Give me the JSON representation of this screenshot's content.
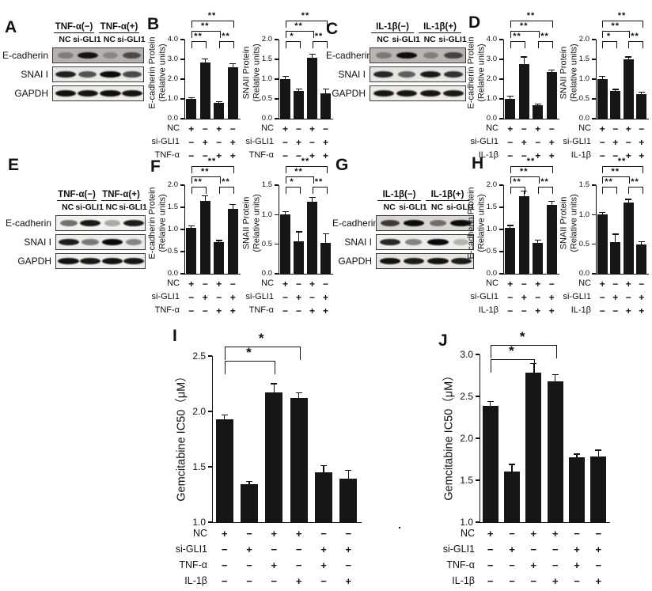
{
  "panel_labels": [
    "A",
    "B",
    "C",
    "D",
    "E",
    "F",
    "G",
    "H",
    "I",
    "J"
  ],
  "stray_mark": ".",
  "blots": [
    {
      "panel": "A",
      "groups": [
        "TNF-α(−)",
        "TNF-α(+)"
      ],
      "lanes": [
        "NC",
        "si-GLI1",
        "NC",
        "si-GLI1"
      ],
      "rows": [
        {
          "label": "E-cadherin",
          "bg": "#b6b2ad",
          "bands": [
            0.3,
            0.92,
            0.25,
            0.6
          ]
        },
        {
          "label": "SNAI I",
          "bg": "#eae8e4",
          "bands": [
            0.88,
            0.65,
            0.97,
            0.7
          ]
        },
        {
          "label": "GAPDH",
          "bg": "#efece8",
          "bands": [
            0.95,
            0.93,
            0.95,
            0.93
          ]
        }
      ]
    },
    {
      "panel": "C",
      "groups": [
        "IL-1β(−)",
        "IL-1β(+)"
      ],
      "lanes": [
        "NC",
        "si-GLI1",
        "NC",
        "si-GLI1"
      ],
      "rows": [
        {
          "label": "E-cadherin",
          "bg": "#b9b5b0",
          "bands": [
            0.35,
            0.95,
            0.3,
            0.65
          ]
        },
        {
          "label": "SNAI I",
          "bg": "#e7e5e1",
          "bands": [
            0.85,
            0.6,
            0.9,
            0.8
          ]
        },
        {
          "label": "GAPDH",
          "bg": "#eeebe7",
          "bands": [
            0.92,
            0.92,
            0.93,
            0.9
          ]
        }
      ]
    },
    {
      "panel": "E",
      "groups": [
        "TNF-α(−)",
        "TNF-α(+)"
      ],
      "lanes": [
        "NC",
        "si-GLI1",
        "NC",
        "si-GLI1"
      ],
      "rows": [
        {
          "label": "E-cadherin",
          "bg": "#f3f1ee",
          "bands": [
            0.55,
            0.92,
            0.3,
            0.9
          ]
        },
        {
          "label": "SNAI I",
          "bg": "#eeece9",
          "bands": [
            0.9,
            0.5,
            0.98,
            0.45
          ]
        },
        {
          "label": "GAPDH",
          "bg": "#f1efec",
          "bands": [
            0.95,
            0.92,
            0.95,
            0.93
          ]
        }
      ]
    },
    {
      "panel": "G",
      "groups": [
        "IL-1β(−)",
        "IL-1β(+)"
      ],
      "lanes": [
        "NC",
        "si-GLI1",
        "NC",
        "si-GLI1"
      ],
      "rows": [
        {
          "label": "E-cadherin",
          "bg": "#d9d6d1",
          "bands": [
            0.75,
            0.97,
            0.5,
            0.97
          ]
        },
        {
          "label": "SNAI I",
          "bg": "#efedea",
          "bands": [
            0.85,
            0.45,
            0.98,
            0.25
          ]
        },
        {
          "label": "GAPDH",
          "bg": "#e9e6e2",
          "bands": [
            0.95,
            0.9,
            0.95,
            0.9
          ]
        }
      ]
    }
  ],
  "chart_data": [
    {
      "panel": "B",
      "type": "bar",
      "ylabel_lines": [
        "E-cadherin Protein",
        "(Relative units)"
      ],
      "ylim": [
        0,
        4
      ],
      "yticks": [
        0,
        1,
        2,
        3,
        4
      ],
      "values": [
        1.0,
        2.85,
        0.8,
        2.6
      ],
      "errors": [
        0.06,
        0.18,
        0.05,
        0.18
      ],
      "sig": [
        {
          "a": 0,
          "b": 1,
          "label": "**",
          "level": 1
        },
        {
          "a": 2,
          "b": 3,
          "label": "**",
          "level": 1
        },
        {
          "a": 0,
          "b": 2,
          "label": "**",
          "level": 2
        },
        {
          "a": 0,
          "b": 3,
          "label": "**",
          "level": 3
        }
      ],
      "xrows": [
        {
          "label": "NC",
          "signs": [
            "+",
            "−",
            "+",
            "−"
          ]
        },
        {
          "label": "si-GLI1",
          "signs": [
            "−",
            "+",
            "−",
            "+"
          ]
        },
        {
          "label": "TNF-α",
          "signs": [
            "−",
            "−",
            "+",
            "+"
          ]
        }
      ]
    },
    {
      "panel": "B",
      "type": "bar",
      "ylabel_lines": [
        "SNAII Protein",
        "(Relative units)"
      ],
      "ylim": [
        0,
        2
      ],
      "yticks": [
        0,
        0.5,
        1,
        1.5,
        2
      ],
      "values": [
        1.0,
        0.7,
        1.55,
        0.65
      ],
      "errors": [
        0.07,
        0.05,
        0.08,
        0.1
      ],
      "sig": [
        {
          "a": 0,
          "b": 1,
          "label": "*",
          "level": 1
        },
        {
          "a": 2,
          "b": 3,
          "label": "**",
          "level": 1
        },
        {
          "a": 0,
          "b": 2,
          "label": "**",
          "level": 2
        },
        {
          "a": 0,
          "b": 3,
          "label": "**",
          "level": 3
        }
      ],
      "xrows": [
        {
          "label": "NC",
          "signs": [
            "+",
            "−",
            "+",
            "−"
          ]
        },
        {
          "label": "si-GLI1",
          "signs": [
            "−",
            "+",
            "−",
            "+"
          ]
        },
        {
          "label": "TNF-α",
          "signs": [
            "−",
            "−",
            "+",
            "+"
          ]
        }
      ]
    },
    {
      "panel": "D",
      "type": "bar",
      "ylabel_lines": [
        "E-cadherin Protein",
        "(Relative units)"
      ],
      "ylim": [
        0,
        4
      ],
      "yticks": [
        0,
        1,
        2,
        3,
        4
      ],
      "values": [
        1.02,
        2.78,
        0.7,
        2.37
      ],
      "errors": [
        0.12,
        0.34,
        0.03,
        0.08
      ],
      "sig": [
        {
          "a": 0,
          "b": 1,
          "label": "**",
          "level": 1
        },
        {
          "a": 2,
          "b": 3,
          "label": "**",
          "level": 1
        },
        {
          "a": 0,
          "b": 2,
          "label": "**",
          "level": 2
        },
        {
          "a": 0,
          "b": 3,
          "label": "**",
          "level": 3
        }
      ],
      "xrows": [
        {
          "label": "NC",
          "signs": [
            "+",
            "−",
            "+",
            "−"
          ]
        },
        {
          "label": "si-GLI1",
          "signs": [
            "−",
            "+",
            "−",
            "+"
          ]
        },
        {
          "label": "IL-1β",
          "signs": [
            "−",
            "−",
            "+",
            "+"
          ]
        }
      ]
    },
    {
      "panel": "D",
      "type": "bar",
      "ylabel_lines": [
        "SNAII Protein",
        "(Relative units)"
      ],
      "ylim": [
        0,
        2
      ],
      "yticks": [
        0,
        0.5,
        1,
        1.5,
        2
      ],
      "values": [
        1.0,
        0.7,
        1.5,
        0.62
      ],
      "errors": [
        0.07,
        0.04,
        0.06,
        0.05
      ],
      "sig": [
        {
          "a": 0,
          "b": 1,
          "label": "*",
          "level": 1
        },
        {
          "a": 2,
          "b": 3,
          "label": "**",
          "level": 1
        },
        {
          "a": 0,
          "b": 2,
          "label": "**",
          "level": 2
        },
        {
          "a": 0,
          "b": 3,
          "label": "**",
          "level": 3
        }
      ],
      "xrows": [
        {
          "label": "NC",
          "signs": [
            "+",
            "−",
            "+",
            "−"
          ]
        },
        {
          "label": "si-GLI1",
          "signs": [
            "−",
            "+",
            "−",
            "+"
          ]
        },
        {
          "label": "IL-1β",
          "signs": [
            "−",
            "−",
            "+",
            "+"
          ]
        }
      ]
    },
    {
      "panel": "F",
      "type": "bar",
      "ylabel_lines": [
        "E-cadherin Protein",
        "(Relative units)"
      ],
      "ylim": [
        0,
        2
      ],
      "yticks": [
        0,
        0.5,
        1,
        1.5,
        2
      ],
      "values": [
        1.04,
        1.65,
        0.72,
        1.47
      ],
      "errors": [
        0.04,
        0.11,
        0.03,
        0.09
      ],
      "sig": [
        {
          "a": 0,
          "b": 1,
          "label": "**",
          "level": 1
        },
        {
          "a": 2,
          "b": 3,
          "label": "**",
          "level": 1
        },
        {
          "a": 0,
          "b": 2,
          "label": "**",
          "level": 2
        },
        {
          "a": 0,
          "b": 3,
          "label": "**",
          "level": 3
        }
      ],
      "xrows": [
        {
          "label": "NC",
          "signs": [
            "+",
            "−",
            "+",
            "−"
          ]
        },
        {
          "label": "si-GLI1",
          "signs": [
            "−",
            "+",
            "−",
            "+"
          ]
        },
        {
          "label": "TNF-α",
          "signs": [
            "−",
            "−",
            "+",
            "+"
          ]
        }
      ]
    },
    {
      "panel": "F",
      "type": "bar",
      "ylabel_lines": [
        "SNAII Protein",
        "(Relative units)"
      ],
      "ylim": [
        0,
        1.5
      ],
      "yticks": [
        0,
        0.5,
        1,
        1.5
      ],
      "values": [
        1.0,
        0.55,
        1.22,
        0.52
      ],
      "errors": [
        0.05,
        0.16,
        0.07,
        0.16
      ],
      "sig": [
        {
          "a": 0,
          "b": 1,
          "label": "*",
          "level": 1
        },
        {
          "a": 2,
          "b": 3,
          "label": "**",
          "level": 1
        },
        {
          "a": 0,
          "b": 2,
          "label": "**",
          "level": 2
        },
        {
          "a": 0,
          "b": 3,
          "label": "**",
          "level": 3
        }
      ],
      "xrows": [
        {
          "label": "NC",
          "signs": [
            "+",
            "−",
            "+",
            "−"
          ]
        },
        {
          "label": "si-GLI1",
          "signs": [
            "−",
            "+",
            "−",
            "+"
          ]
        },
        {
          "label": "TNF-α",
          "signs": [
            "−",
            "−",
            "+",
            "+"
          ]
        }
      ]
    },
    {
      "panel": "H",
      "type": "bar",
      "ylabel_lines": [
        "E-cadherin Protein",
        "(Relative units)"
      ],
      "ylim": [
        0,
        2
      ],
      "yticks": [
        0,
        0.5,
        1,
        1.5,
        2
      ],
      "values": [
        1.04,
        1.75,
        0.7,
        1.56
      ],
      "errors": [
        0.05,
        0.12,
        0.06,
        0.07
      ],
      "sig": [
        {
          "a": 0,
          "b": 1,
          "label": "**",
          "level": 1
        },
        {
          "a": 2,
          "b": 3,
          "label": "**",
          "level": 1
        },
        {
          "a": 0,
          "b": 2,
          "label": "**",
          "level": 2
        },
        {
          "a": 0,
          "b": 3,
          "label": "**",
          "level": 3
        }
      ],
      "xrows": [
        {
          "label": "NC",
          "signs": [
            "+",
            "−",
            "+",
            "−"
          ]
        },
        {
          "label": "si-GLI1",
          "signs": [
            "−",
            "+",
            "−",
            "+"
          ]
        },
        {
          "label": "IL-1β",
          "signs": [
            "−",
            "−",
            "+",
            "+"
          ]
        }
      ]
    },
    {
      "panel": "H",
      "type": "bar",
      "ylabel_lines": [
        "SNAII Protein",
        "(Relative units)"
      ],
      "ylim": [
        0,
        1.5
      ],
      "yticks": [
        0,
        0.5,
        1,
        1.5
      ],
      "values": [
        1.0,
        0.53,
        1.21,
        0.49
      ],
      "errors": [
        0.04,
        0.14,
        0.05,
        0.05
      ],
      "sig": [
        {
          "a": 0,
          "b": 1,
          "label": "**",
          "level": 1
        },
        {
          "a": 2,
          "b": 3,
          "label": "**",
          "level": 1
        },
        {
          "a": 0,
          "b": 2,
          "label": "**",
          "level": 2
        },
        {
          "a": 0,
          "b": 3,
          "label": "**",
          "level": 3
        }
      ],
      "xrows": [
        {
          "label": "NC",
          "signs": [
            "+",
            "−",
            "+",
            "−"
          ]
        },
        {
          "label": "si-GLI1",
          "signs": [
            "−",
            "+",
            "−",
            "+"
          ]
        },
        {
          "label": "IL-1β",
          "signs": [
            "−",
            "−",
            "+",
            "+"
          ]
        }
      ]
    },
    {
      "panel": "I",
      "type": "bar",
      "ylabel_lines": [
        "Gemcitabine IC50（μM）"
      ],
      "ylim": [
        1.0,
        2.5
      ],
      "yticks": [
        1.0,
        1.5,
        2.0,
        2.5
      ],
      "values": [
        1.93,
        1.34,
        2.17,
        2.12,
        1.45,
        1.39
      ],
      "errors": [
        0.04,
        0.03,
        0.08,
        0.05,
        0.06,
        0.08
      ],
      "sig": [
        {
          "a": 0,
          "b": 2,
          "label": "*",
          "level": 1
        },
        {
          "a": 0,
          "b": 3,
          "label": "*",
          "level": 2
        }
      ],
      "xrows": [
        {
          "label": "NC",
          "signs": [
            "+",
            "−",
            "+",
            "+",
            "−",
            "−"
          ]
        },
        {
          "label": "si-GLI1",
          "signs": [
            "−",
            "+",
            "−",
            "−",
            "+",
            "+"
          ]
        },
        {
          "label": "TNF-α",
          "signs": [
            "−",
            "−",
            "+",
            "−",
            "+",
            "−"
          ]
        },
        {
          "label": "IL-1β",
          "signs": [
            "−",
            "−",
            "−",
            "+",
            "−",
            "+"
          ]
        }
      ]
    },
    {
      "panel": "J",
      "type": "bar",
      "ylabel_lines": [
        "Gemcitabine IC50（μM）"
      ],
      "ylim": [
        1.0,
        3.0
      ],
      "yticks": [
        1.0,
        1.5,
        2.0,
        2.5,
        3.0
      ],
      "values": [
        2.39,
        1.6,
        2.78,
        2.68,
        1.77,
        1.78
      ],
      "errors": [
        0.05,
        0.09,
        0.11,
        0.08,
        0.04,
        0.08
      ],
      "sig": [
        {
          "a": 0,
          "b": 2,
          "label": "*",
          "level": 1
        },
        {
          "a": 0,
          "b": 3,
          "label": "*",
          "level": 2
        }
      ],
      "xrows": [
        {
          "label": "NC",
          "signs": [
            "+",
            "−",
            "+",
            "+",
            "−",
            "−"
          ]
        },
        {
          "label": "si-GLI1",
          "signs": [
            "−",
            "+",
            "−",
            "−",
            "+",
            "+"
          ]
        },
        {
          "label": "TNF-α",
          "signs": [
            "−",
            "−",
            "+",
            "−",
            "+",
            "−"
          ]
        },
        {
          "label": "IL-1β",
          "signs": [
            "−",
            "−",
            "−",
            "+",
            "−",
            "+"
          ]
        }
      ]
    }
  ]
}
